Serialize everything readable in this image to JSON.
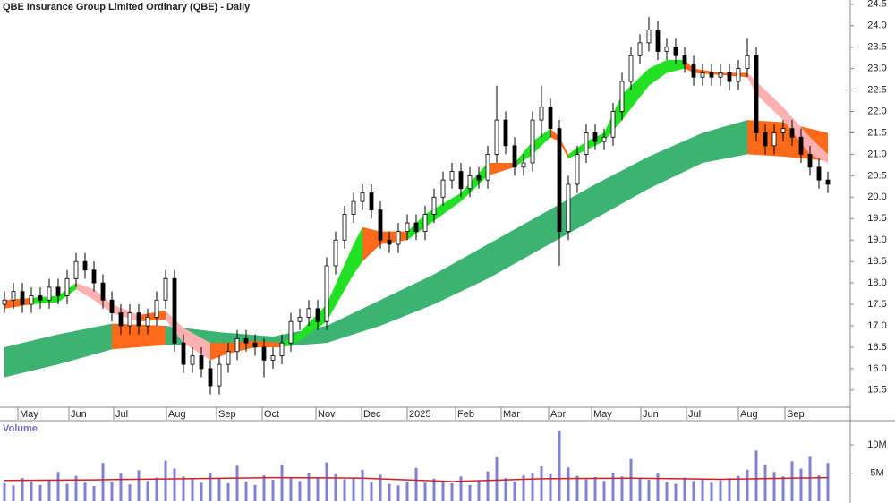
{
  "chart_data": [
    {
      "type": "candlestick",
      "title": "QBE Insurance Group Limited Ordinary (QBE) - Daily",
      "open": [
        17.5,
        17.6,
        17.8,
        17.5,
        17.7,
        17.6,
        17.9,
        17.7,
        18.1,
        18.5,
        18.3,
        18.0,
        17.6,
        17.3,
        17.0,
        17.3,
        17.0,
        17.2,
        17.6,
        18.1,
        16.6,
        16.1,
        16.3,
        16.0,
        15.6,
        16.1,
        16.4,
        16.7,
        16.6,
        16.5,
        16.2,
        16.3,
        16.6,
        17.1,
        17.2,
        17.4,
        17.1,
        18.4,
        19.0,
        19.6,
        19.9,
        20.1,
        19.7,
        19.0,
        18.9,
        19.2,
        19.4,
        19.2,
        19.6,
        20.0,
        20.4,
        20.6,
        20.2,
        20.5,
        20.4,
        21.0,
        21.8,
        21.2,
        20.7,
        20.8,
        21.8,
        22.1,
        21.6,
        19.2,
        20.3,
        21.0,
        21.5,
        21.3,
        21.4,
        22.0,
        22.7,
        23.3,
        23.6,
        23.9,
        23.4,
        23.5,
        23.3,
        23.1,
        22.8,
        22.9,
        22.8,
        22.9,
        22.7,
        23.0,
        23.3,
        21.5,
        21.2,
        21.5,
        21.6,
        21.4,
        21.0,
        20.7,
        20.4
      ],
      "high": [
        17.8,
        18.0,
        18.0,
        17.9,
        17.9,
        18.1,
        18.1,
        18.3,
        18.7,
        18.7,
        18.5,
        18.2,
        17.8,
        17.5,
        17.5,
        17.5,
        17.4,
        17.8,
        18.3,
        18.3,
        16.8,
        16.5,
        16.5,
        16.2,
        16.3,
        16.6,
        16.9,
        16.9,
        16.8,
        16.7,
        16.5,
        16.8,
        17.3,
        17.4,
        17.6,
        17.6,
        18.6,
        19.2,
        19.8,
        20.1,
        20.3,
        20.3,
        19.9,
        19.2,
        19.4,
        19.6,
        19.6,
        19.8,
        20.2,
        20.6,
        20.8,
        20.8,
        20.7,
        20.7,
        21.2,
        22.6,
        22.0,
        21.4,
        21.0,
        22.0,
        22.6,
        22.3,
        21.8,
        20.5,
        21.2,
        21.7,
        21.7,
        21.6,
        22.2,
        22.9,
        23.5,
        23.8,
        24.2,
        24.1,
        23.7,
        23.7,
        23.5,
        23.3,
        23.1,
        23.1,
        23.1,
        23.1,
        23.2,
        23.7,
        23.5,
        21.7,
        21.7,
        21.8,
        21.8,
        21.6,
        21.2,
        20.9,
        20.6
      ],
      "low": [
        17.3,
        17.4,
        17.3,
        17.3,
        17.4,
        17.4,
        17.5,
        17.5,
        17.9,
        18.1,
        17.8,
        17.4,
        17.1,
        16.8,
        16.8,
        16.8,
        16.8,
        17.0,
        17.4,
        16.4,
        15.9,
        15.9,
        15.8,
        15.4,
        15.4,
        15.9,
        16.2,
        16.4,
        16.3,
        15.8,
        16.0,
        16.1,
        16.4,
        16.9,
        17.0,
        16.9,
        16.9,
        18.2,
        18.8,
        19.4,
        19.7,
        19.5,
        18.8,
        18.7,
        18.7,
        19.0,
        19.0,
        19.0,
        19.4,
        19.8,
        20.2,
        20.0,
        20.0,
        20.2,
        20.2,
        20.8,
        21.0,
        20.5,
        20.5,
        20.6,
        21.4,
        21.4,
        18.4,
        19.0,
        20.1,
        20.8,
        21.1,
        21.1,
        21.2,
        21.8,
        22.5,
        23.1,
        23.4,
        23.2,
        23.2,
        23.1,
        22.9,
        22.6,
        22.6,
        22.6,
        22.6,
        22.5,
        22.5,
        22.8,
        21.3,
        21.0,
        21.0,
        21.3,
        21.2,
        20.8,
        20.5,
        20.2,
        20.1
      ],
      "close": [
        17.6,
        17.8,
        17.5,
        17.7,
        17.6,
        17.9,
        17.7,
        18.1,
        18.5,
        18.3,
        18.0,
        17.6,
        17.3,
        17.0,
        17.3,
        17.0,
        17.2,
        17.6,
        18.1,
        16.6,
        16.1,
        16.3,
        16.0,
        15.6,
        16.1,
        16.4,
        16.7,
        16.6,
        16.5,
        16.2,
        16.3,
        16.6,
        17.1,
        17.2,
        17.4,
        17.1,
        18.4,
        19.0,
        19.6,
        19.9,
        20.1,
        19.7,
        19.0,
        18.9,
        19.2,
        19.4,
        19.2,
        19.6,
        20.0,
        20.4,
        20.6,
        20.2,
        20.5,
        20.4,
        21.0,
        21.8,
        21.2,
        20.7,
        20.8,
        21.8,
        22.1,
        21.6,
        19.2,
        20.3,
        21.0,
        21.5,
        21.3,
        21.4,
        22.0,
        22.7,
        23.3,
        23.6,
        23.9,
        23.4,
        23.5,
        23.3,
        23.1,
        22.8,
        22.9,
        22.8,
        22.9,
        22.7,
        23.0,
        23.3,
        21.5,
        21.2,
        21.5,
        21.6,
        21.4,
        21.0,
        20.7,
        20.4,
        20.3
      ],
      "up_color": "#ffffff",
      "down_color": "#000000",
      "xlim": [
        -0.5,
        94.5
      ],
      "xticks": [
        {
          "value": 1.5,
          "label": "May"
        },
        {
          "value": 7.2,
          "label": "Jun"
        },
        {
          "value": 12.2,
          "label": "Jul"
        },
        {
          "value": 18.1,
          "label": "Aug"
        },
        {
          "value": 23.7,
          "label": "Sep"
        },
        {
          "value": 28.8,
          "label": "Oct"
        },
        {
          "value": 34.8,
          "label": "Nov"
        },
        {
          "value": 39.9,
          "label": "Dec"
        },
        {
          "value": 45,
          "label": "2025"
        },
        {
          "value": 50.4,
          "label": "Feb"
        },
        {
          "value": 55.5,
          "label": "Mar"
        },
        {
          "value": 60.8,
          "label": "Apr"
        },
        {
          "value": 65.6,
          "label": "May"
        },
        {
          "value": 71.1,
          "label": "Jun"
        },
        {
          "value": 76.2,
          "label": "Jul"
        },
        {
          "value": 82,
          "label": "Aug"
        },
        {
          "value": 87.2,
          "label": "Sep"
        }
      ],
      "ylim": [
        15.1,
        24.6
      ],
      "yticks": [
        15.5,
        {
          "value": 16,
          "label": "16.0"
        },
        16.5,
        {
          "value": 17,
          "label": "17.0"
        },
        17.5,
        {
          "value": 18,
          "label": "18.0"
        },
        18.5,
        {
          "value": 19,
          "label": "19.0"
        },
        19.5,
        {
          "value": 20,
          "label": "20.0"
        },
        20.5,
        {
          "value": 21,
          "label": "21.0"
        },
        21.5,
        {
          "value": 22,
          "label": "22.0"
        },
        22.5,
        {
          "value": 23,
          "label": "23.0"
        },
        23.5,
        {
          "value": 24,
          "label": "24.0"
        },
        24.5
      ],
      "ribbons": [
        {
          "x": [
            0,
            6,
            12,
            18,
            24,
            30,
            36,
            42,
            48,
            54,
            60,
            66,
            72,
            78,
            83,
            87,
            92
          ],
          "upper": [
            16.5,
            16.8,
            17.05,
            17.0,
            16.85,
            16.75,
            17.0,
            17.6,
            18.2,
            18.9,
            19.6,
            20.3,
            20.95,
            21.5,
            21.8,
            21.75,
            21.5
          ],
          "lower": [
            15.8,
            16.1,
            16.45,
            16.55,
            16.55,
            16.5,
            16.6,
            17.0,
            17.5,
            18.1,
            18.8,
            19.5,
            20.2,
            20.8,
            21.0,
            20.95,
            20.85
          ],
          "colors": [
            "#3cb371",
            "#3cb371",
            "#ff6a1a",
            "#3cb371",
            "#3cb371",
            "#3cb371",
            "#3cb371",
            "#3cb371",
            "#3cb371",
            "#3cb371",
            "#3cb371",
            "#3cb371",
            "#3cb371",
            "#3cb371",
            "#ff6a1a",
            "#ff6a1a"
          ]
        },
        {
          "x": [
            0,
            3,
            6,
            8,
            10,
            12,
            15,
            18,
            20,
            23,
            25,
            28,
            31,
            33,
            36,
            39,
            40,
            42,
            45,
            47,
            51,
            54,
            57,
            59,
            61,
            62,
            63,
            65,
            67,
            69,
            72,
            74,
            76,
            77,
            80,
            83,
            84,
            87,
            90,
            92
          ],
          "upper": [
            17.6,
            17.65,
            17.7,
            18.0,
            17.85,
            17.5,
            17.25,
            17.35,
            16.95,
            16.6,
            16.6,
            16.65,
            16.6,
            16.85,
            17.5,
            18.9,
            19.3,
            19.2,
            19.2,
            19.6,
            20.1,
            20.8,
            20.8,
            21.3,
            21.6,
            21.4,
            21.0,
            21.3,
            21.5,
            22.4,
            23.0,
            23.2,
            23.2,
            23.0,
            22.9,
            22.9,
            22.7,
            22.1,
            21.4,
            21.0
          ],
          "lower": [
            17.4,
            17.5,
            17.55,
            17.85,
            17.6,
            17.3,
            17.1,
            17.15,
            16.6,
            16.2,
            16.35,
            16.5,
            16.5,
            16.65,
            17.1,
            18.2,
            18.5,
            18.9,
            19.0,
            19.3,
            19.9,
            20.5,
            20.7,
            21.0,
            21.4,
            21.3,
            20.9,
            21.1,
            21.3,
            21.8,
            22.6,
            22.9,
            23.0,
            22.9,
            22.85,
            22.8,
            22.4,
            21.8,
            21.0,
            20.8
          ],
          "colors": [
            "#ff6a1a",
            "#22e022",
            "#22e022",
            "#ffb0b0",
            "#ffb0b0",
            "#ffb0b0",
            "#ff6a1a",
            "#ffb0b0",
            "#ffb0b0",
            "#ff6a1a",
            "#ff6a1a",
            "#ff6a1a",
            "#22e022",
            "#22e022",
            "#22e022",
            "#22e022",
            "#ff6a1a",
            "#ff6a1a",
            "#22e022",
            "#22e022",
            "#22e022",
            "#ff6a1a",
            "#22e022",
            "#22e022",
            "#ff6a1a",
            "#ff6a1a",
            "#22e022",
            "#22e022",
            "#22e022",
            "#22e022",
            "#22e022",
            "#22e022",
            "#ff6a1a",
            "#ff6a1a",
            "#ff6a1a",
            "#ffb0b0",
            "#ffb0b0",
            "#ffb0b0",
            "#ffb0b0"
          ]
        }
      ]
    },
    {
      "type": "bar",
      "title": "Volume",
      "color": "#8080d8",
      "values": [
        3200000,
        2800000,
        4100000,
        3500000,
        2900000,
        3800000,
        5200000,
        3100000,
        4500000,
        3300000,
        2700000,
        6800000,
        3400000,
        4900000,
        3000000,
        5500000,
        3600000,
        4200000,
        7200000,
        5800000,
        4400000,
        3900000,
        3300000,
        5100000,
        4000000,
        3200000,
        6300000,
        3500000,
        2900000,
        4600000,
        3800000,
        6500000,
        4200000,
        3600000,
        5000000,
        4300000,
        6900000,
        4800000,
        3900000,
        4100000,
        5600000,
        3400000,
        4700000,
        3100000,
        2800000,
        3500000,
        5900000,
        3300000,
        4000000,
        3600000,
        3200000,
        4400000,
        2900000,
        3700000,
        5300000,
        7800000,
        4100000,
        3500000,
        4600000,
        5000000,
        6200000,
        4800000,
        12500000,
        6000000,
        4500000,
        3900000,
        4300000,
        3600000,
        5100000,
        4400000,
        7500000,
        4000000,
        3800000,
        4900000,
        3400000,
        3100000,
        4200000,
        3600000,
        3900000,
        3300000,
        3700000,
        4100000,
        4500000,
        5600000,
        9000000,
        6500000,
        5200000,
        4400000,
        7100000,
        5800000,
        7900000,
        4600000,
        6800000
      ],
      "ma": {
        "x": [
          0,
          10,
          20,
          30,
          40,
          50,
          60,
          70,
          80,
          92
        ],
        "values": [
          3700000,
          3800000,
          4000000,
          4200000,
          4100000,
          3500000,
          4000000,
          4100000,
          3900000,
          4200000
        ],
        "color": "#d02020"
      },
      "xlim": [
        -0.5,
        94.5
      ],
      "ylim": [
        0,
        14300000
      ],
      "yticks": [
        {
          "value": 5000000,
          "label": "5M"
        },
        {
          "value": 10000000,
          "label": "10M"
        }
      ]
    }
  ]
}
